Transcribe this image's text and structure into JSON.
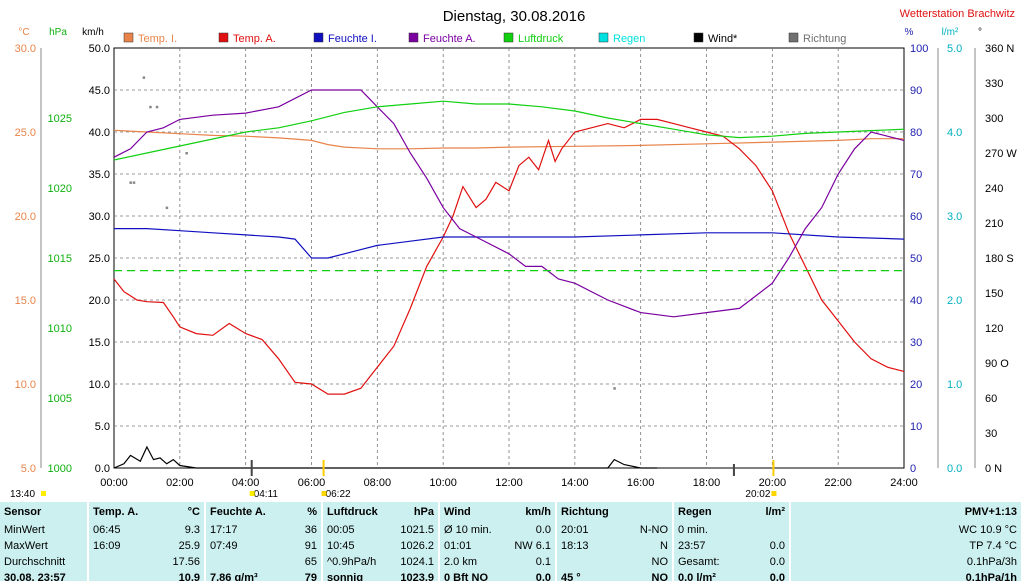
{
  "title": "Dienstag, 30.08.2016",
  "station": "Wetterstation Brachwitz",
  "axis_units": {
    "temp": "°C",
    "pressure": "hPa",
    "wind": "km/h",
    "humidity": "%",
    "rain": "l/m²",
    "direction": "°"
  },
  "colors": {
    "temp_i": "#e8844a",
    "temp_a": "#e01010",
    "feuchte_i": "#1010c0",
    "feuchte_a": "#7a00a0",
    "luftdruck": "#10d010",
    "regen": "#00e0e0",
    "wind": "#000000",
    "richtung": "#707070",
    "temp_axis": "#e8844a",
    "pressure_axis": "#10b010",
    "humidity_axis": "#2020b0",
    "rain_axis": "#00b0c0"
  },
  "legend": [
    {
      "key": "temp_i",
      "label": "Temp. I."
    },
    {
      "key": "temp_a",
      "label": "Temp. A."
    },
    {
      "key": "feuchte_i",
      "label": "Feuchte I."
    },
    {
      "key": "feuchte_a",
      "label": "Feuchte A."
    },
    {
      "key": "luftdruck",
      "label": "Luftdruck"
    },
    {
      "key": "regen",
      "label": "Regen"
    },
    {
      "key": "wind",
      "label": "Wind*"
    },
    {
      "key": "richtung",
      "label": "Richtung"
    }
  ],
  "markers": {
    "left_time": "13:40",
    "m1": "04:11",
    "m2": "06:22",
    "m3": "20:02"
  },
  "chart_data": {
    "type": "line",
    "x_unit": "hours",
    "xlim": [
      0,
      24
    ],
    "x_ticks": [
      "00:00",
      "02:00",
      "04:00",
      "06:00",
      "08:00",
      "10:00",
      "12:00",
      "14:00",
      "16:00",
      "18:00",
      "20:00",
      "22:00",
      "24:00"
    ],
    "axes": {
      "temp": {
        "ylim": [
          5,
          30
        ],
        "ticks": [
          "5.0",
          "10.0",
          "15.0",
          "20.0",
          "25.0",
          "30.0"
        ]
      },
      "pressure": {
        "ylim": [
          1000,
          1030
        ],
        "ticks": [
          "1000",
          "1005",
          "1010",
          "1015",
          "1020",
          "1025"
        ]
      },
      "wind": {
        "ylim": [
          0,
          50
        ],
        "ticks": [
          "0.0",
          "5.0",
          "10.0",
          "15.0",
          "20.0",
          "25.0",
          "30.0",
          "35.0",
          "40.0",
          "45.0",
          "50.0"
        ]
      },
      "humidity": {
        "ylim": [
          0,
          100
        ],
        "ticks": [
          "0",
          "10",
          "20",
          "30",
          "40",
          "50",
          "60",
          "70",
          "80",
          "90",
          "100"
        ]
      },
      "rain": {
        "ylim": [
          0,
          5
        ],
        "ticks": [
          "0.0",
          "1.0",
          "2.0",
          "3.0",
          "4.0",
          "5.0"
        ]
      },
      "direction": {
        "ylim": [
          0,
          360
        ],
        "ticks": [
          "0  N",
          "30",
          "60",
          "90  O",
          "120",
          "150",
          "180  S",
          "210",
          "240",
          "270  W",
          "300",
          "330",
          "360  N"
        ]
      }
    },
    "series": [
      {
        "name": "Temp. I.",
        "key": "temp_i",
        "axis": "wind",
        "x": [
          0,
          1,
          2,
          3,
          4,
          5,
          6,
          6.5,
          7,
          8,
          9,
          10,
          11,
          12,
          14,
          16,
          18,
          20,
          22,
          23,
          24
        ],
        "y": [
          40.2,
          40,
          39.8,
          39.6,
          39.5,
          39.3,
          39,
          38.5,
          38.2,
          38,
          38,
          38.1,
          38.1,
          38.2,
          38.3,
          38.4,
          38.6,
          38.8,
          39,
          39.2,
          39.2
        ]
      },
      {
        "name": "Temp. A.",
        "key": "temp_a",
        "axis": "wind",
        "x": [
          0,
          0.3,
          0.7,
          1,
          1.5,
          1.8,
          2,
          2.5,
          3,
          3.5,
          4,
          4.5,
          5,
          5.5,
          6,
          6.5,
          7,
          7.5,
          8,
          8.5,
          9,
          9.5,
          10,
          10.3,
          10.6,
          11,
          11.3,
          11.6,
          12,
          12.3,
          12.6,
          12.9,
          13.2,
          13.4,
          13.6,
          14,
          14.5,
          15,
          15.5,
          16,
          16.5,
          17,
          17.5,
          18,
          18.5,
          19,
          19.5,
          20,
          20.5,
          21,
          21.5,
          22,
          22.5,
          23,
          23.5,
          24
        ],
        "y": [
          22.5,
          21,
          20,
          19.8,
          19.7,
          18,
          16.8,
          16,
          15.8,
          17.2,
          16,
          15.3,
          13,
          10.2,
          10,
          8.8,
          8.8,
          9.5,
          12,
          14.5,
          19,
          24,
          27.5,
          30,
          33.5,
          31,
          32,
          34,
          33,
          36,
          37,
          35.5,
          39,
          36.5,
          38,
          40,
          40.5,
          41,
          40.5,
          41.5,
          41.5,
          41,
          40.5,
          40,
          39.5,
          38,
          36,
          33,
          28,
          24,
          20,
          17.5,
          15,
          13,
          12,
          11.5
        ]
      },
      {
        "name": "Feuchte I.",
        "key": "feuchte_i",
        "axis": "humidity",
        "x": [
          0,
          1,
          2,
          3,
          4,
          5,
          5.5,
          6,
          6.5,
          7,
          7.5,
          8,
          9,
          10,
          11,
          12,
          14,
          16,
          18,
          20,
          22,
          24
        ],
        "y": [
          57,
          57,
          56.5,
          56,
          55.5,
          55,
          54.5,
          50,
          50,
          51,
          52,
          53,
          54,
          55,
          55,
          55,
          55,
          55.5,
          56,
          56,
          55,
          54.5
        ]
      },
      {
        "name": "Feuchte A.",
        "key": "feuchte_a",
        "axis": "humidity",
        "x": [
          0,
          0.5,
          1,
          1.5,
          2,
          3,
          4,
          5,
          6,
          7,
          7.5,
          8,
          8.5,
          9,
          9.5,
          10,
          10.5,
          11,
          12,
          12.5,
          13,
          13.5,
          14,
          15,
          16,
          17,
          18,
          19,
          20,
          20.5,
          21,
          21.5,
          22,
          22.5,
          23,
          23.5,
          24
        ],
        "y": [
          74,
          76,
          80,
          81,
          83,
          84,
          84.5,
          86,
          90,
          90,
          90,
          86,
          82,
          75,
          69,
          62,
          57,
          55,
          51,
          48,
          48,
          45,
          44,
          40,
          37,
          36,
          37,
          38,
          44,
          50,
          57,
          62,
          70,
          76,
          80,
          79,
          78
        ]
      },
      {
        "name": "Luftdruck",
        "key": "luftdruck",
        "axis": "pressure",
        "x": [
          0,
          1,
          2,
          3,
          4,
          5,
          6,
          7,
          8,
          9,
          10,
          11,
          12,
          13,
          14,
          15,
          16,
          17,
          18,
          19,
          20,
          21,
          22,
          23,
          24
        ],
        "y": [
          1022,
          1022.5,
          1023,
          1023.5,
          1024,
          1024.3,
          1024.8,
          1025.4,
          1025.8,
          1026,
          1026.2,
          1026,
          1026,
          1025.8,
          1025.5,
          1025,
          1024.6,
          1024.2,
          1023.8,
          1023.6,
          1023.7,
          1023.9,
          1024,
          1024.1,
          1024.2
        ]
      },
      {
        "name": "Taupunkt ref",
        "key": "temp_i",
        "axis": "wind",
        "dashed": true,
        "x": [
          0,
          24
        ],
        "y": [
          23.5,
          23.5
        ]
      },
      {
        "name": "Wind*",
        "key": "wind",
        "axis": "wind",
        "x": [
          0,
          0.3,
          0.5,
          0.8,
          1,
          1.2,
          1.4,
          1.6,
          1.8,
          2,
          2.5,
          3,
          15,
          15.2,
          15.5,
          16,
          16.5
        ],
        "y": [
          0,
          0.5,
          1.5,
          0.8,
          2.5,
          1,
          1.2,
          0.5,
          1,
          0.3,
          0,
          0,
          0,
          1,
          0.4,
          0,
          0
        ]
      }
    ],
    "scatter_points": [
      {
        "x": 0.9,
        "y": 46.5
      },
      {
        "x": 1.1,
        "y": 43
      },
      {
        "x": 1.3,
        "y": 43
      },
      {
        "x": 0.5,
        "y": 34
      },
      {
        "x": 0.6,
        "y": 34
      },
      {
        "x": 2.2,
        "y": 37.5
      },
      {
        "x": 1.6,
        "y": 31
      },
      {
        "x": 15.2,
        "y": 9.5
      }
    ]
  },
  "table": {
    "header": {
      "c0": "Sensor",
      "c1a": "Temp. A.",
      "c1b": "°C",
      "c2a": "Feuchte A.",
      "c2b": "%",
      "c3a": "Luftdruck",
      "c3b": "hPa",
      "c4a": "Wind",
      "c4b": "km/h",
      "c5": "Richtung",
      "c6a": "Regen",
      "c6b": "l/m²",
      "c7": "PMV+1:13"
    },
    "rows": [
      {
        "c0": "MinWert",
        "t1": "06:45",
        "v1": "9.3",
        "t2": "17:17",
        "v2": "36",
        "t3": "00:05",
        "v3": "1021.5",
        "t4": "Ø 10 min.",
        "v4": "0.0",
        "t5": "20:01",
        "v5": "N-NO",
        "t6": "0 min.",
        "v6": "",
        "v7": "WC 10.9 °C"
      },
      {
        "c0": "MaxWert",
        "t1": "16:09",
        "v1": "25.9",
        "t2": "07:49",
        "v2": "91",
        "t3": "10:45",
        "v3": "1026.2",
        "t4": "01:01",
        "v4": "NW 6.1",
        "t5": "18:13",
        "v5": "N",
        "t6": "23:57",
        "v6": "0.0",
        "v7": "TP 7.4 °C"
      },
      {
        "c0": "Durchschnitt",
        "t1": "",
        "v1": "17.56",
        "t2": "",
        "v2": "65",
        "t3": "^0.9hPa/h",
        "v3": "1024.1",
        "t4": "2.0 km",
        "v4": "0.1",
        "t5": "",
        "v5": "NO",
        "t6": "Gesamt:",
        "v6": "0.0",
        "v7": "0.1hPa/3h"
      },
      {
        "c0": "30.08. 23:57",
        "t1": "",
        "v1": "10.9",
        "t2": "7.86 g/m³",
        "v2": "79",
        "t3": "sonnig",
        "v3": "1023.9",
        "t4": "0 Bft NO",
        "v4": "0.0",
        "t5": "45 °",
        "v5": "NO",
        "t6": "0.0 l/m²",
        "v6": "0.0",
        "v7": "0.1hPa/1h"
      }
    ]
  }
}
